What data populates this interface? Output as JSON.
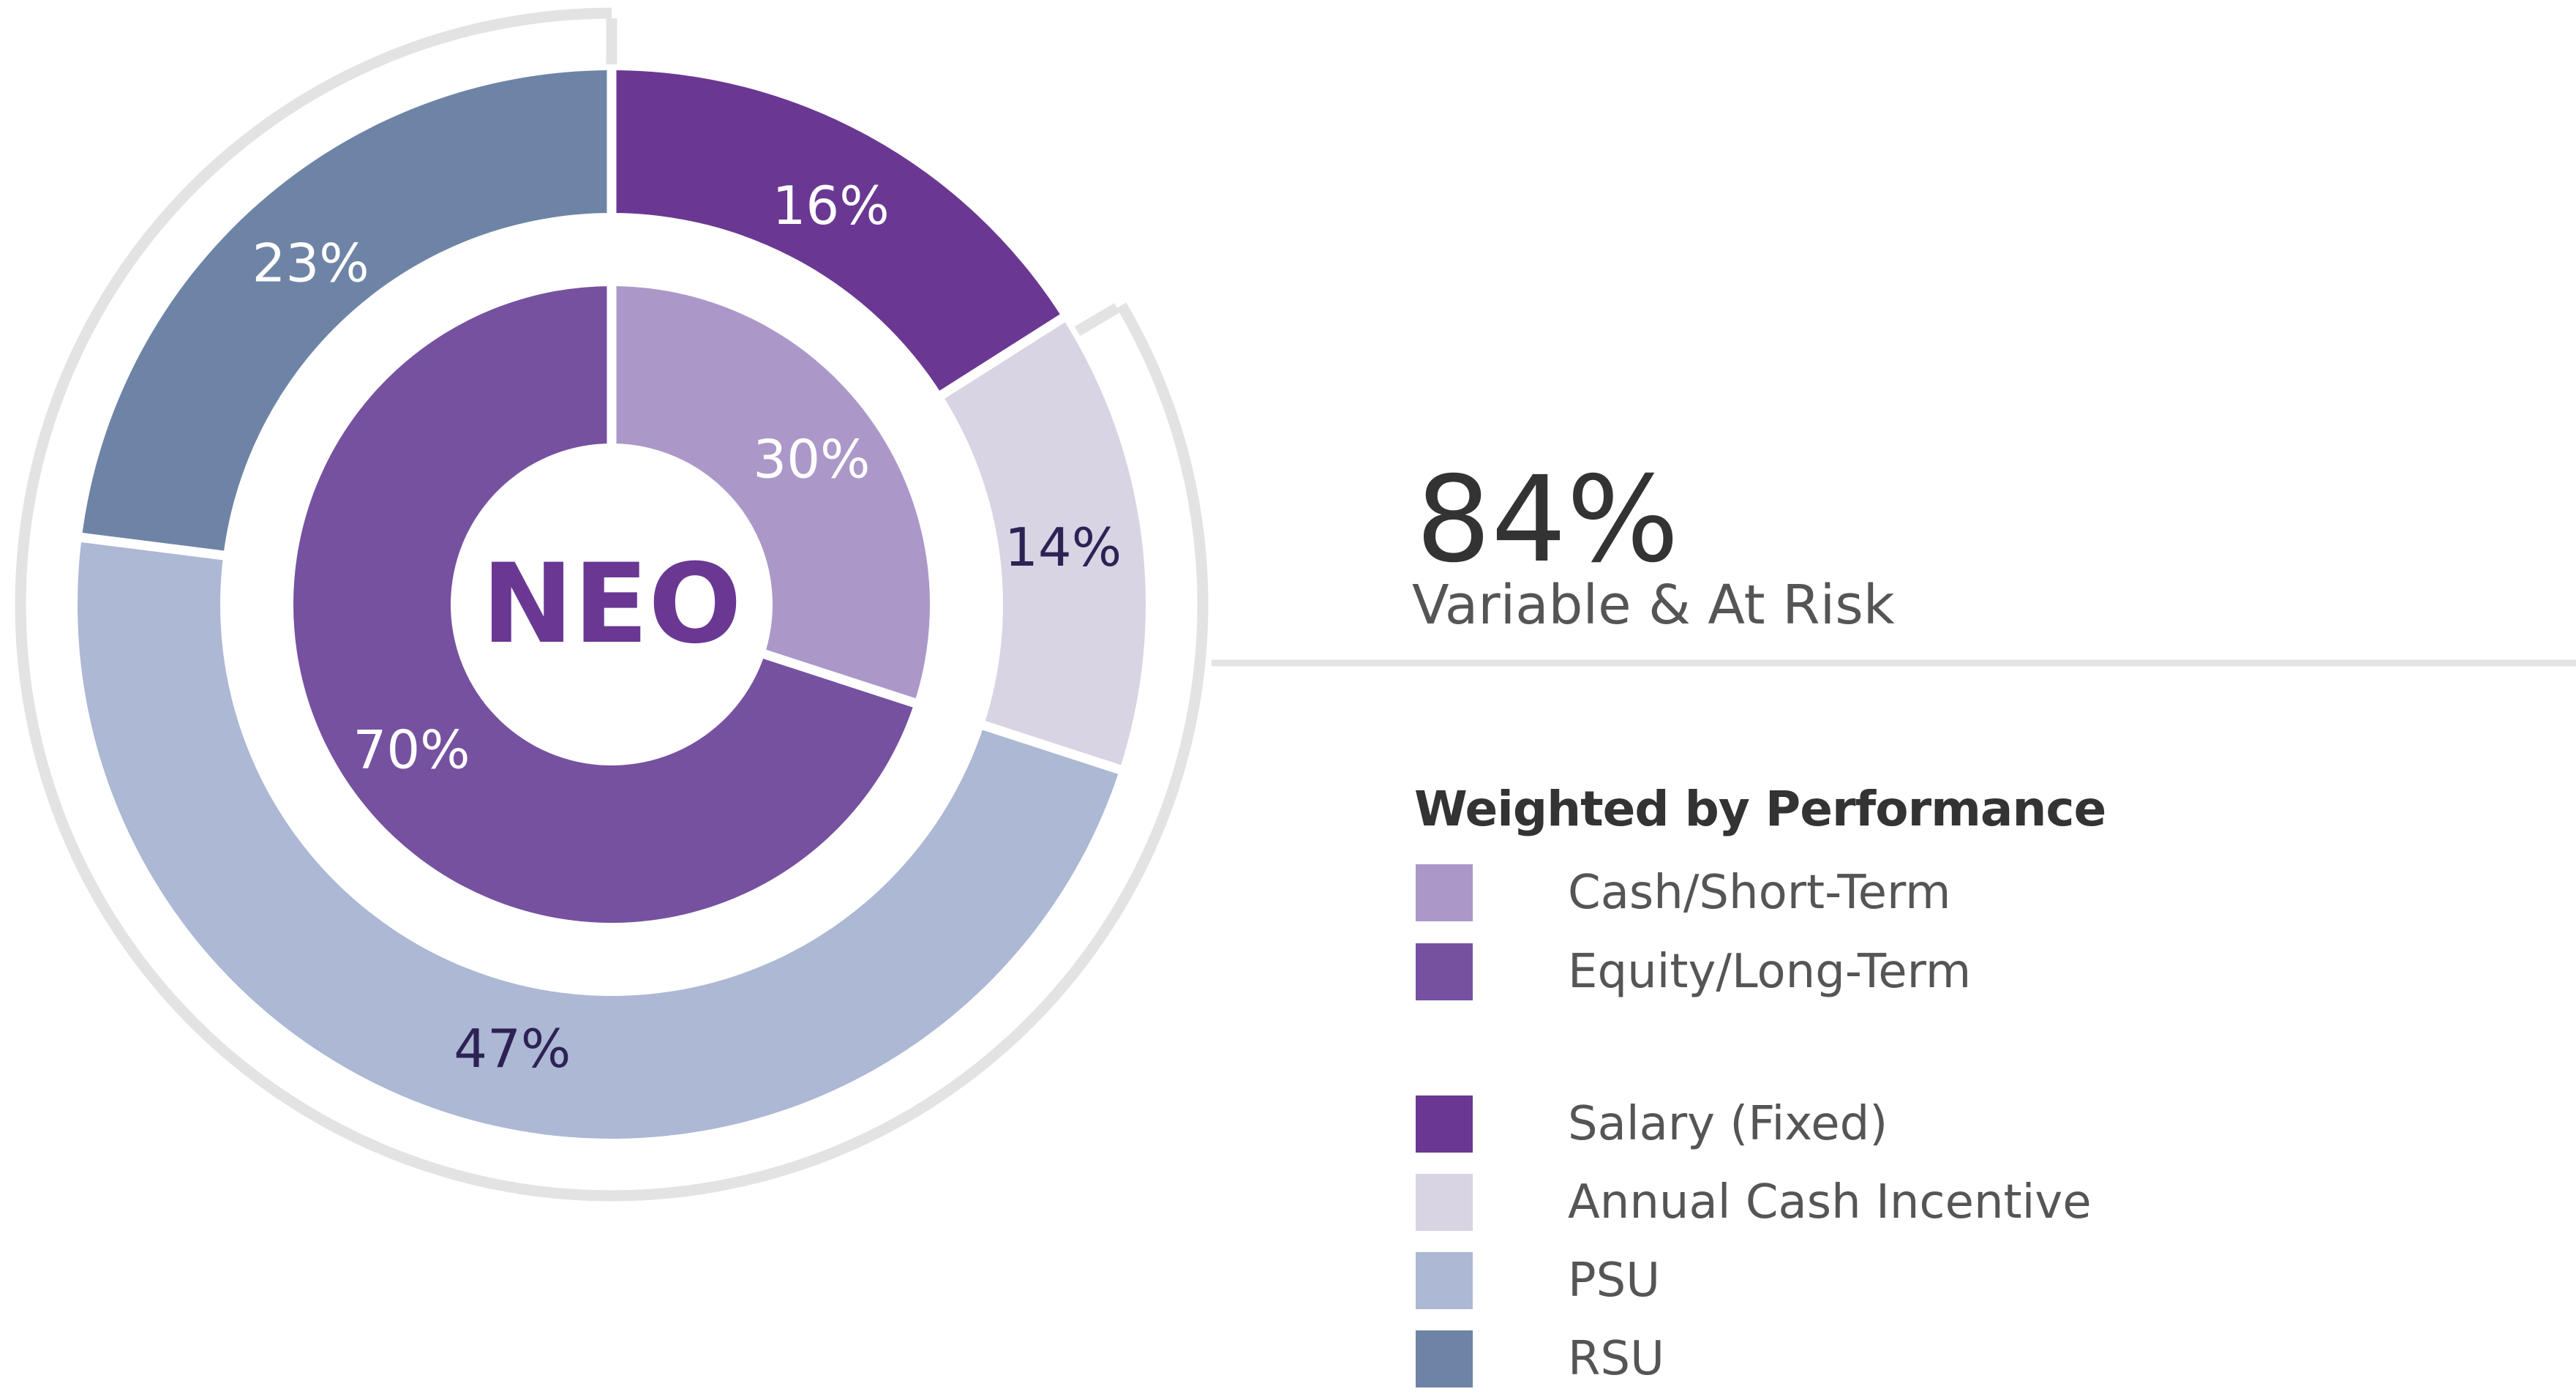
{
  "chart_data": {
    "type": "pie",
    "center_label": "NEO",
    "inner_ring": [
      {
        "name": "Cash/Short-Term",
        "value": 30,
        "label": "30%",
        "color": "#AB98C9"
      },
      {
        "name": "Equity/Long-Term",
        "value": 70,
        "label": "70%",
        "color": "#7651A0"
      }
    ],
    "outer_ring": [
      {
        "name": "Salary (Fixed)",
        "value": 16,
        "label": "16%",
        "color": "#6A3893"
      },
      {
        "name": "Annual Cash Incentive",
        "value": 14,
        "label": "14%",
        "color": "#D8D4E3"
      },
      {
        "name": "PSU",
        "value": 47,
        "label": "47%",
        "color": "#ACB8D4"
      },
      {
        "name": "RSU",
        "value": 23,
        "label": "23%",
        "color": "#6E84A6"
      }
    ],
    "legend_placement": "right",
    "highlight": {
      "value": "84%",
      "label": "Variable & At Risk"
    }
  },
  "legend": {
    "heading": "Weighted by Performance",
    "items": [
      {
        "label": "Cash/Short-Term",
        "color": "#AB98C9"
      },
      {
        "label": "Equity/Long-Term",
        "color": "#7651A0"
      },
      {
        "label": "Salary (Fixed)",
        "color": "#6A3893"
      },
      {
        "label": "Annual Cash Incentive",
        "color": "#D8D4E3"
      },
      {
        "label": "PSU",
        "color": "#ACB8D4"
      },
      {
        "label": "RSU",
        "color": "#6E84A6"
      }
    ]
  },
  "colors": {
    "bracket": "#E3E3E3",
    "center_text": "#6A3893",
    "dark_label": "#2E2255",
    "light_label": "#FFFFFF"
  }
}
